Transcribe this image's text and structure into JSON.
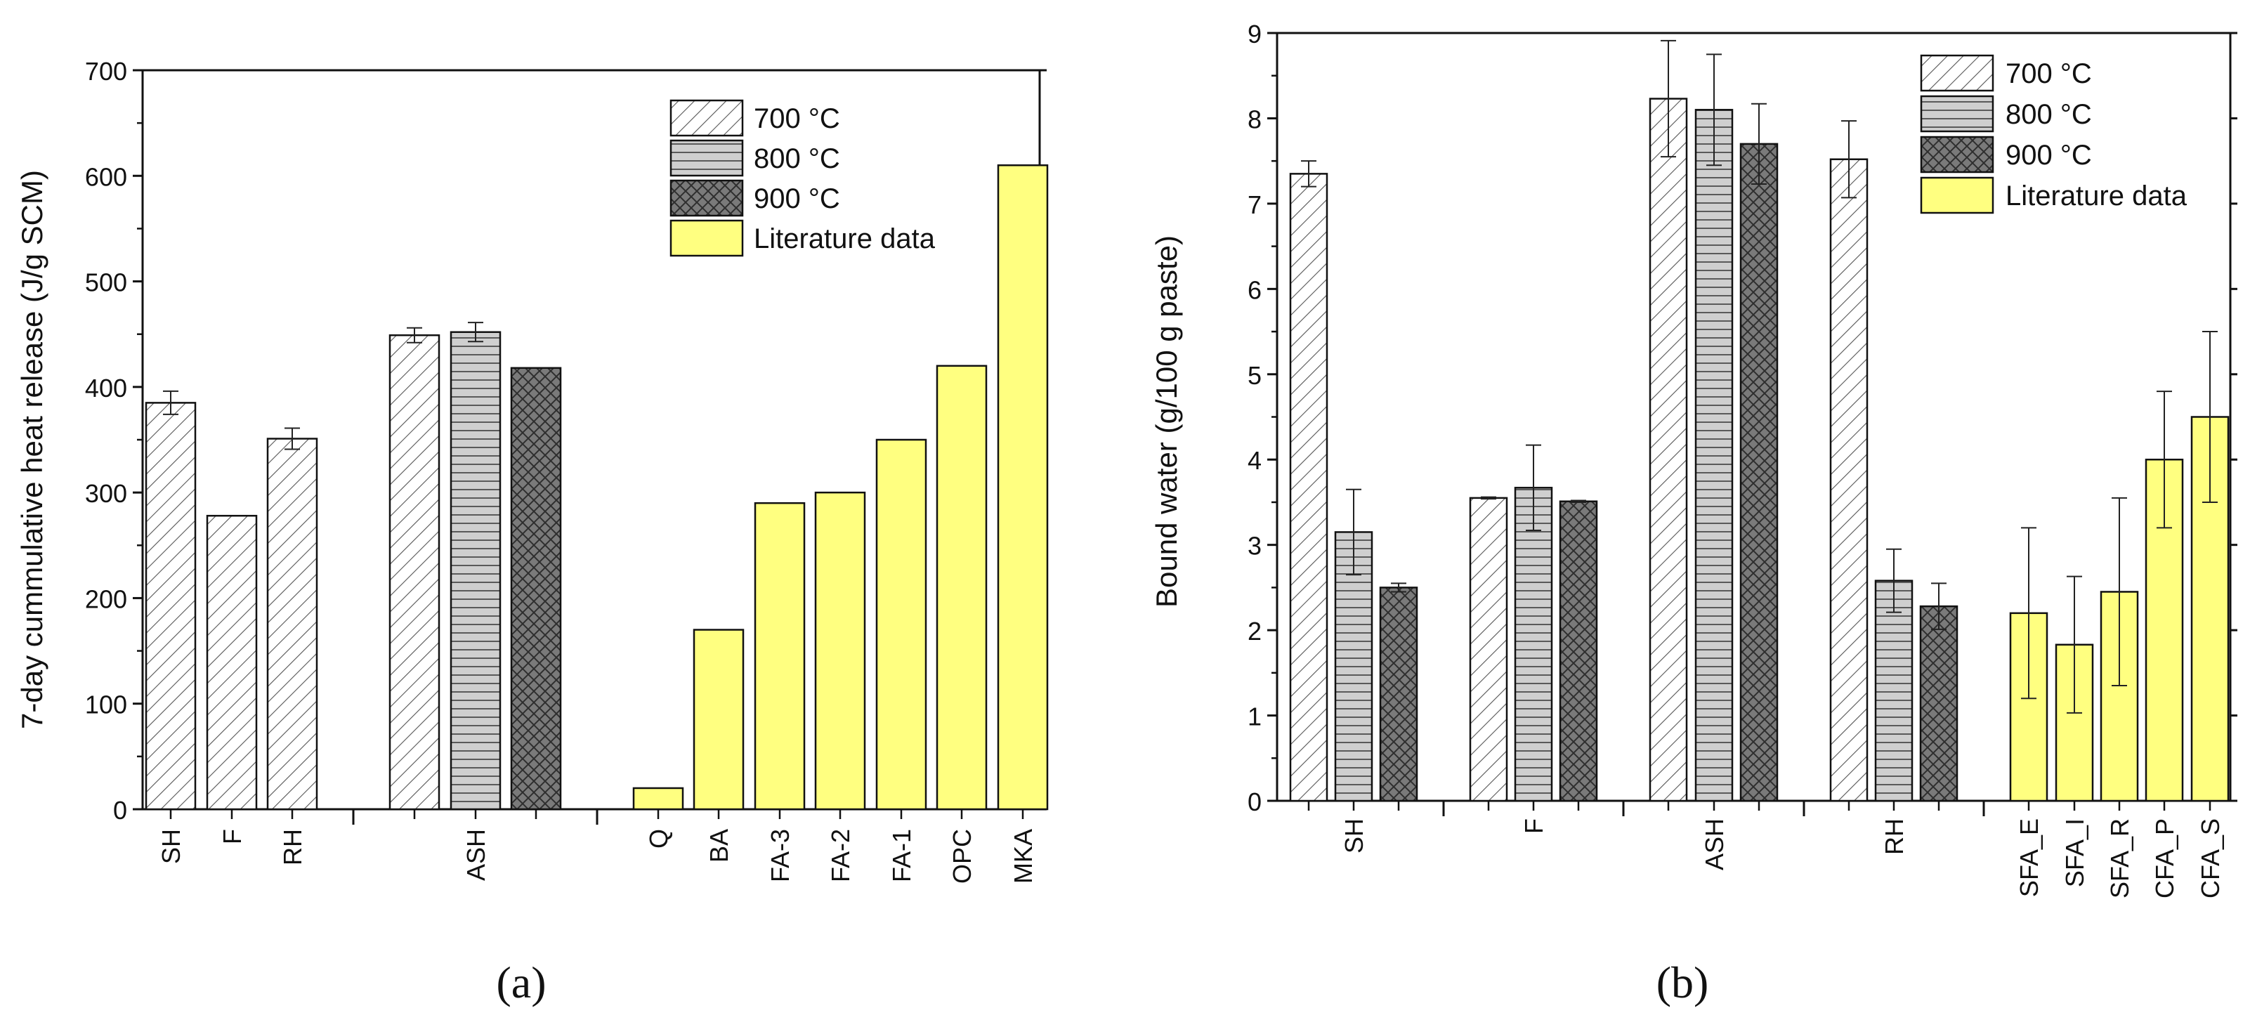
{
  "chart_data": [
    {
      "id": "a",
      "type": "bar",
      "panel_label": "(a)",
      "ylabel": "7-day cummulative heat release (J/g SCM)",
      "xlabel": "",
      "ylim": [
        0,
        700
      ],
      "yticks": [
        0,
        100,
        200,
        300,
        400,
        500,
        600,
        700
      ],
      "grid": false,
      "legend_position": "top-right",
      "legend": [
        {
          "label": "700 °C",
          "style": "hatch700"
        },
        {
          "label": "800 °C",
          "style": "hatch800"
        },
        {
          "label": "900 °C",
          "style": "hatch900"
        },
        {
          "label": "Literature data",
          "style": "lit"
        }
      ],
      "bars": [
        {
          "category": "SH",
          "series": "700 °C",
          "style": "hatch700",
          "value": 385,
          "err": 11
        },
        {
          "category": "F",
          "series": "700 °C",
          "style": "hatch700",
          "value": 278,
          "err": null
        },
        {
          "category": "RH",
          "series": "700 °C",
          "style": "hatch700",
          "value": 351,
          "err": 10
        },
        {
          "category": "",
          "series": "700 °C",
          "style": "hatch700",
          "value": 449,
          "err": 7
        },
        {
          "category": "ASH",
          "series": "800 °C",
          "style": "hatch800",
          "value": 452,
          "err": 9
        },
        {
          "category": "",
          "series": "900 °C",
          "style": "hatch900",
          "value": 418,
          "err": null
        },
        {
          "category": "Q",
          "series": "Literature data",
          "style": "lit",
          "value": 20,
          "err": null
        },
        {
          "category": "BA",
          "series": "Literature data",
          "style": "lit",
          "value": 170,
          "err": null
        },
        {
          "category": "FA-3",
          "series": "Literature data",
          "style": "lit",
          "value": 290,
          "err": null
        },
        {
          "category": "FA-2",
          "series": "Literature data",
          "style": "lit",
          "value": 300,
          "err": null
        },
        {
          "category": "FA-1",
          "series": "Literature data",
          "style": "lit",
          "value": 350,
          "err": null
        },
        {
          "category": "OPC",
          "series": "Literature data",
          "style": "lit",
          "value": 420,
          "err": null
        },
        {
          "category": "MKA",
          "series": "Literature data",
          "style": "lit",
          "value": 610,
          "err": null
        }
      ]
    },
    {
      "id": "b",
      "type": "bar",
      "panel_label": "(b)",
      "ylabel": "Bound water (g/100 g paste)",
      "xlabel": "",
      "ylim": [
        0,
        9
      ],
      "yticks": [
        0,
        1,
        2,
        3,
        4,
        5,
        6,
        7,
        8,
        9
      ],
      "grid": false,
      "legend_position": "top-right",
      "legend": [
        {
          "label": "700 °C",
          "style": "hatch700"
        },
        {
          "label": "800 °C",
          "style": "hatch800"
        },
        {
          "label": "900 °C",
          "style": "hatch900"
        },
        {
          "label": "Literature data",
          "style": "lit"
        }
      ],
      "group_labels": [
        "SH",
        "F",
        "ASH",
        "RH"
      ],
      "bars": [
        {
          "group": "SH",
          "series": "700 °C",
          "style": "hatch700",
          "value": 7.35,
          "err": 0.15
        },
        {
          "group": "SH",
          "series": "800 °C",
          "style": "hatch800",
          "value": 3.15,
          "err": 0.5
        },
        {
          "group": "SH",
          "series": "900 °C",
          "style": "hatch900",
          "value": 2.5,
          "err": 0.05
        },
        {
          "group": "F",
          "series": "700 °C",
          "style": "hatch700",
          "value": 3.55,
          "err": 0.01
        },
        {
          "group": "F",
          "series": "800 °C",
          "style": "hatch800",
          "value": 3.67,
          "err": 0.5
        },
        {
          "group": "F",
          "series": "900 °C",
          "style": "hatch900",
          "value": 3.51,
          "err": 0.01
        },
        {
          "group": "ASH",
          "series": "700 °C",
          "style": "hatch700",
          "value": 8.23,
          "err": 0.68
        },
        {
          "group": "ASH",
          "series": "800 °C",
          "style": "hatch800",
          "value": 8.1,
          "err": 0.65
        },
        {
          "group": "ASH",
          "series": "900 °C",
          "style": "hatch900",
          "value": 7.7,
          "err": 0.47
        },
        {
          "group": "RH",
          "series": "700 °C",
          "style": "hatch700",
          "value": 7.52,
          "err": 0.45
        },
        {
          "group": "RH",
          "series": "800 °C",
          "style": "hatch800",
          "value": 2.58,
          "err": 0.37
        },
        {
          "group": "RH",
          "series": "900 °C",
          "style": "hatch900",
          "value": 2.28,
          "err": 0.27
        },
        {
          "category": "SFA_E",
          "series": "Literature data",
          "style": "lit",
          "value": 2.2,
          "err": 1.0
        },
        {
          "category": "SFA_I",
          "series": "Literature data",
          "style": "lit",
          "value": 1.83,
          "err": 0.8
        },
        {
          "category": "SFA_R",
          "series": "Literature data",
          "style": "lit",
          "value": 2.45,
          "err": 1.1
        },
        {
          "category": "CFA_P",
          "series": "Literature data",
          "style": "lit",
          "value": 4.0,
          "err": 0.8
        },
        {
          "category": "CFA_S",
          "series": "Literature data",
          "style": "lit",
          "value": 4.5,
          "err": 1.0
        }
      ]
    }
  ]
}
